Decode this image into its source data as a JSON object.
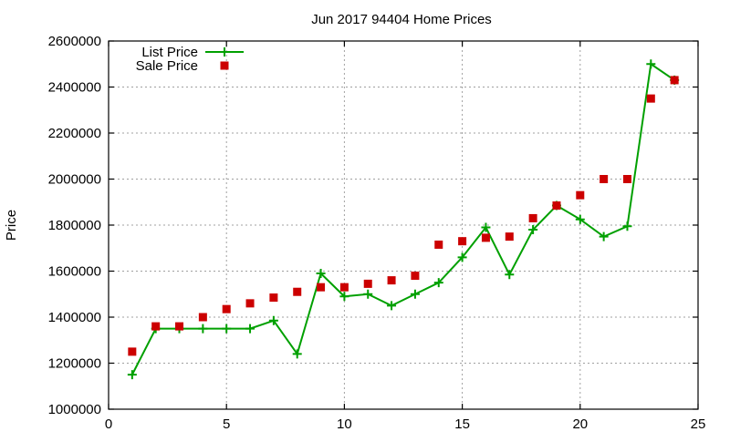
{
  "chart_data": {
    "type": "line",
    "title": "Jun 2017 94404 Home Prices",
    "xlabel": "",
    "ylabel": "Price",
    "xlim": [
      0,
      25
    ],
    "ylim": [
      1000000,
      2600000
    ],
    "xticks": [
      0,
      5,
      10,
      15,
      20,
      25
    ],
    "yticks": [
      1000000,
      1200000,
      1400000,
      1600000,
      1800000,
      2000000,
      2200000,
      2400000,
      2600000
    ],
    "grid": true,
    "legend_position": "top-left",
    "x": [
      1,
      2,
      3,
      4,
      5,
      6,
      7,
      8,
      9,
      10,
      11,
      12,
      13,
      14,
      15,
      16,
      17,
      18,
      19,
      20,
      21,
      22,
      23,
      24
    ],
    "series": [
      {
        "name": "List Price",
        "style": "lines+points",
        "marker": "plus",
        "color": "#00a000",
        "values": [
          1150000,
          1350000,
          1350000,
          1350000,
          1350000,
          1350000,
          1385000,
          1240000,
          1590000,
          1490000,
          1500000,
          1450000,
          1500000,
          1550000,
          1660000,
          1790000,
          1585000,
          1780000,
          1885000,
          1825000,
          1750000,
          1795000,
          2500000,
          2430000
        ]
      },
      {
        "name": "Sale Price",
        "style": "points",
        "marker": "square",
        "color": "#cc0000",
        "values": [
          1250000,
          1360000,
          1360000,
          1400000,
          1435000,
          1460000,
          1485000,
          1510000,
          1530000,
          1530000,
          1545000,
          1560000,
          1580000,
          1715000,
          1730000,
          1745000,
          1750000,
          1830000,
          1885000,
          1930000,
          2000000,
          2000000,
          2350000,
          2430000
        ]
      }
    ]
  },
  "colors": {
    "grid": "#a0a0a0",
    "axis": "#000000",
    "background": "#ffffff"
  }
}
